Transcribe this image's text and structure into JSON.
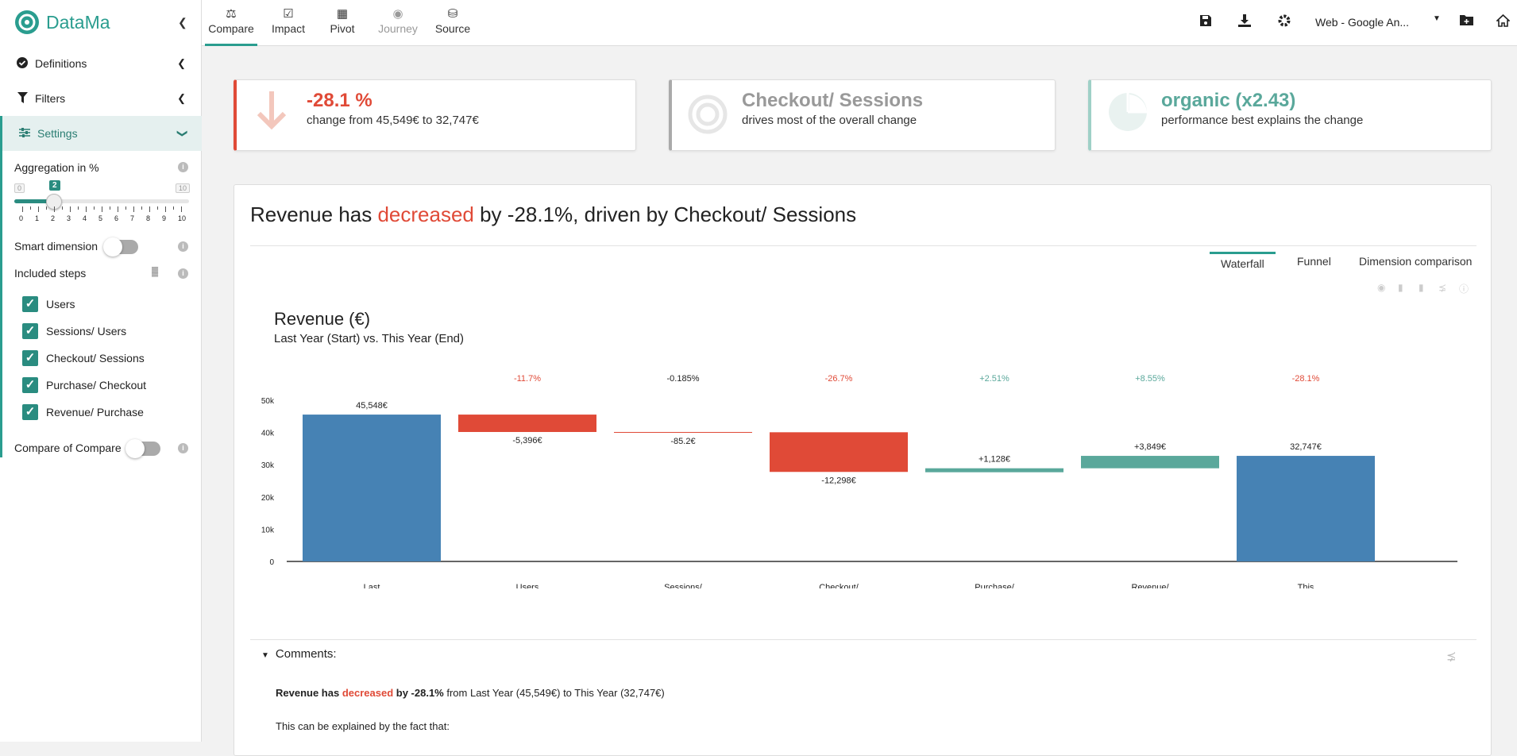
{
  "app": {
    "name": "DataMa"
  },
  "sidebar": {
    "sections": [
      {
        "label": "Definitions"
      },
      {
        "label": "Filters"
      },
      {
        "label": "Settings"
      }
    ],
    "aggregation_label": "Aggregation in %",
    "aggregation_value": "2",
    "aggregation_min": "0",
    "aggregation_max": "10",
    "aggregation_ticks": [
      "0",
      "1",
      "2",
      "3",
      "4",
      "5",
      "6",
      "7",
      "8",
      "9",
      "10"
    ],
    "smart_dimension_label": "Smart dimension",
    "included_steps_label": "Included steps",
    "steps": [
      {
        "label": "Users",
        "checked": true
      },
      {
        "label": "Sessions/ Users",
        "checked": true
      },
      {
        "label": "Checkout/ Sessions",
        "checked": true
      },
      {
        "label": "Purchase/ Checkout",
        "checked": true
      },
      {
        "label": "Revenue/ Purchase",
        "checked": true
      }
    ],
    "compare_of_compare_label": "Compare of Compare"
  },
  "topnav": {
    "tabs": [
      {
        "label": "Compare",
        "icon": "scale-icon",
        "active": true
      },
      {
        "label": "Impact",
        "icon": "checkbox-icon"
      },
      {
        "label": "Pivot",
        "icon": "table-icon"
      },
      {
        "label": "Journey",
        "icon": "globe-icon",
        "disabled": true
      },
      {
        "label": "Source",
        "icon": "database-icon"
      }
    ],
    "datasource": "Web - Google An..."
  },
  "cards": [
    {
      "big": "-28.1 %",
      "sub": "change from 45,549€ to 32,747€",
      "color": "#e04a37",
      "icon": "arrow-down-icon"
    },
    {
      "big": "Checkout/ Sessions",
      "sub": "drives most of the overall change",
      "color": "#999999",
      "icon": "target-icon"
    },
    {
      "big": "organic (x2.43)",
      "sub": "performance best explains the change",
      "color": "#5aa89b",
      "icon": "pie-icon"
    }
  ],
  "headline": {
    "pre": "Revenue has ",
    "highlight": "decreased",
    "post": " by -28.1%, driven by Checkout/ Sessions"
  },
  "chart_tabs": [
    "Waterfall",
    "Funnel",
    "Dimension comparison"
  ],
  "chart_data": {
    "type": "bar",
    "title": "Revenue (€)",
    "subtitle": "Last Year (Start) vs. This Year (End)",
    "ylim": [
      0,
      50000
    ],
    "yticks": [
      "0",
      "10k",
      "20k",
      "30k",
      "40k",
      "50k"
    ],
    "categories": [
      "Last Year",
      "Users",
      "Sessions/ Users",
      "Checkout/ Sessions",
      "Purchase/ Checkout",
      "Revenue/ Purchase",
      "This Year"
    ],
    "values": [
      45548,
      -5396,
      -85.2,
      -12298,
      1128,
      3849,
      32747
    ],
    "bar_labels": [
      "45,548€",
      "-5,396€",
      "-85.2€",
      "-12,298€",
      "+1,128€",
      "+3,849€",
      "32,747€"
    ],
    "pct_labels": [
      "-11.7%",
      "-0.185%",
      "-26.7%",
      "+2.51%",
      "+8.55%",
      "-28.1%"
    ],
    "colors": {
      "total": "#4682b4",
      "negative": "#e04a37",
      "positive": "#5aa89b"
    },
    "grid": false
  },
  "comments": {
    "title": "Comments:",
    "line1_pre": "Revenue has ",
    "line1_red": "decreased",
    "line1_mid": " by -28.1%",
    "line1_post": " from Last Year (45,549€) to This Year (32,747€)",
    "line2": "This can be explained by the fact that:"
  }
}
